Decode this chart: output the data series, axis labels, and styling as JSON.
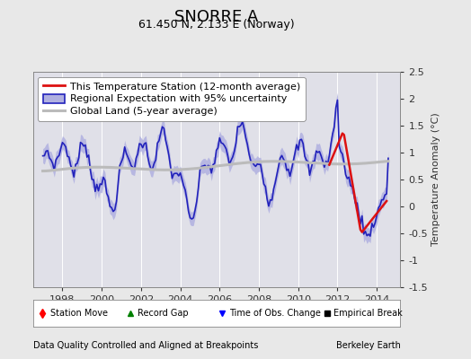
{
  "title": "SNORRE A",
  "subtitle": "61.450 N, 2.133 E (Norway)",
  "ylabel": "Temperature Anomaly (°C)",
  "footer_left": "Data Quality Controlled and Aligned at Breakpoints",
  "footer_right": "Berkeley Earth",
  "xlim": [
    1996.5,
    2015.2
  ],
  "ylim": [
    -1.5,
    2.5
  ],
  "yticks": [
    -1.5,
    -1.0,
    -0.5,
    0.0,
    0.5,
    1.0,
    1.5,
    2.0,
    2.5
  ],
  "xticks": [
    1998,
    2000,
    2002,
    2004,
    2006,
    2008,
    2010,
    2012,
    2014
  ],
  "bg_color": "#e8e8e8",
  "plot_bg_color": "#e0e0e8",
  "regional_color": "#2222bb",
  "regional_fill_color": "#b0b0e0",
  "station_color": "#dd1111",
  "global_color": "#bbbbbb",
  "title_fontsize": 13,
  "subtitle_fontsize": 9,
  "legend_fontsize": 8,
  "axis_fontsize": 8,
  "tick_fontsize": 8
}
